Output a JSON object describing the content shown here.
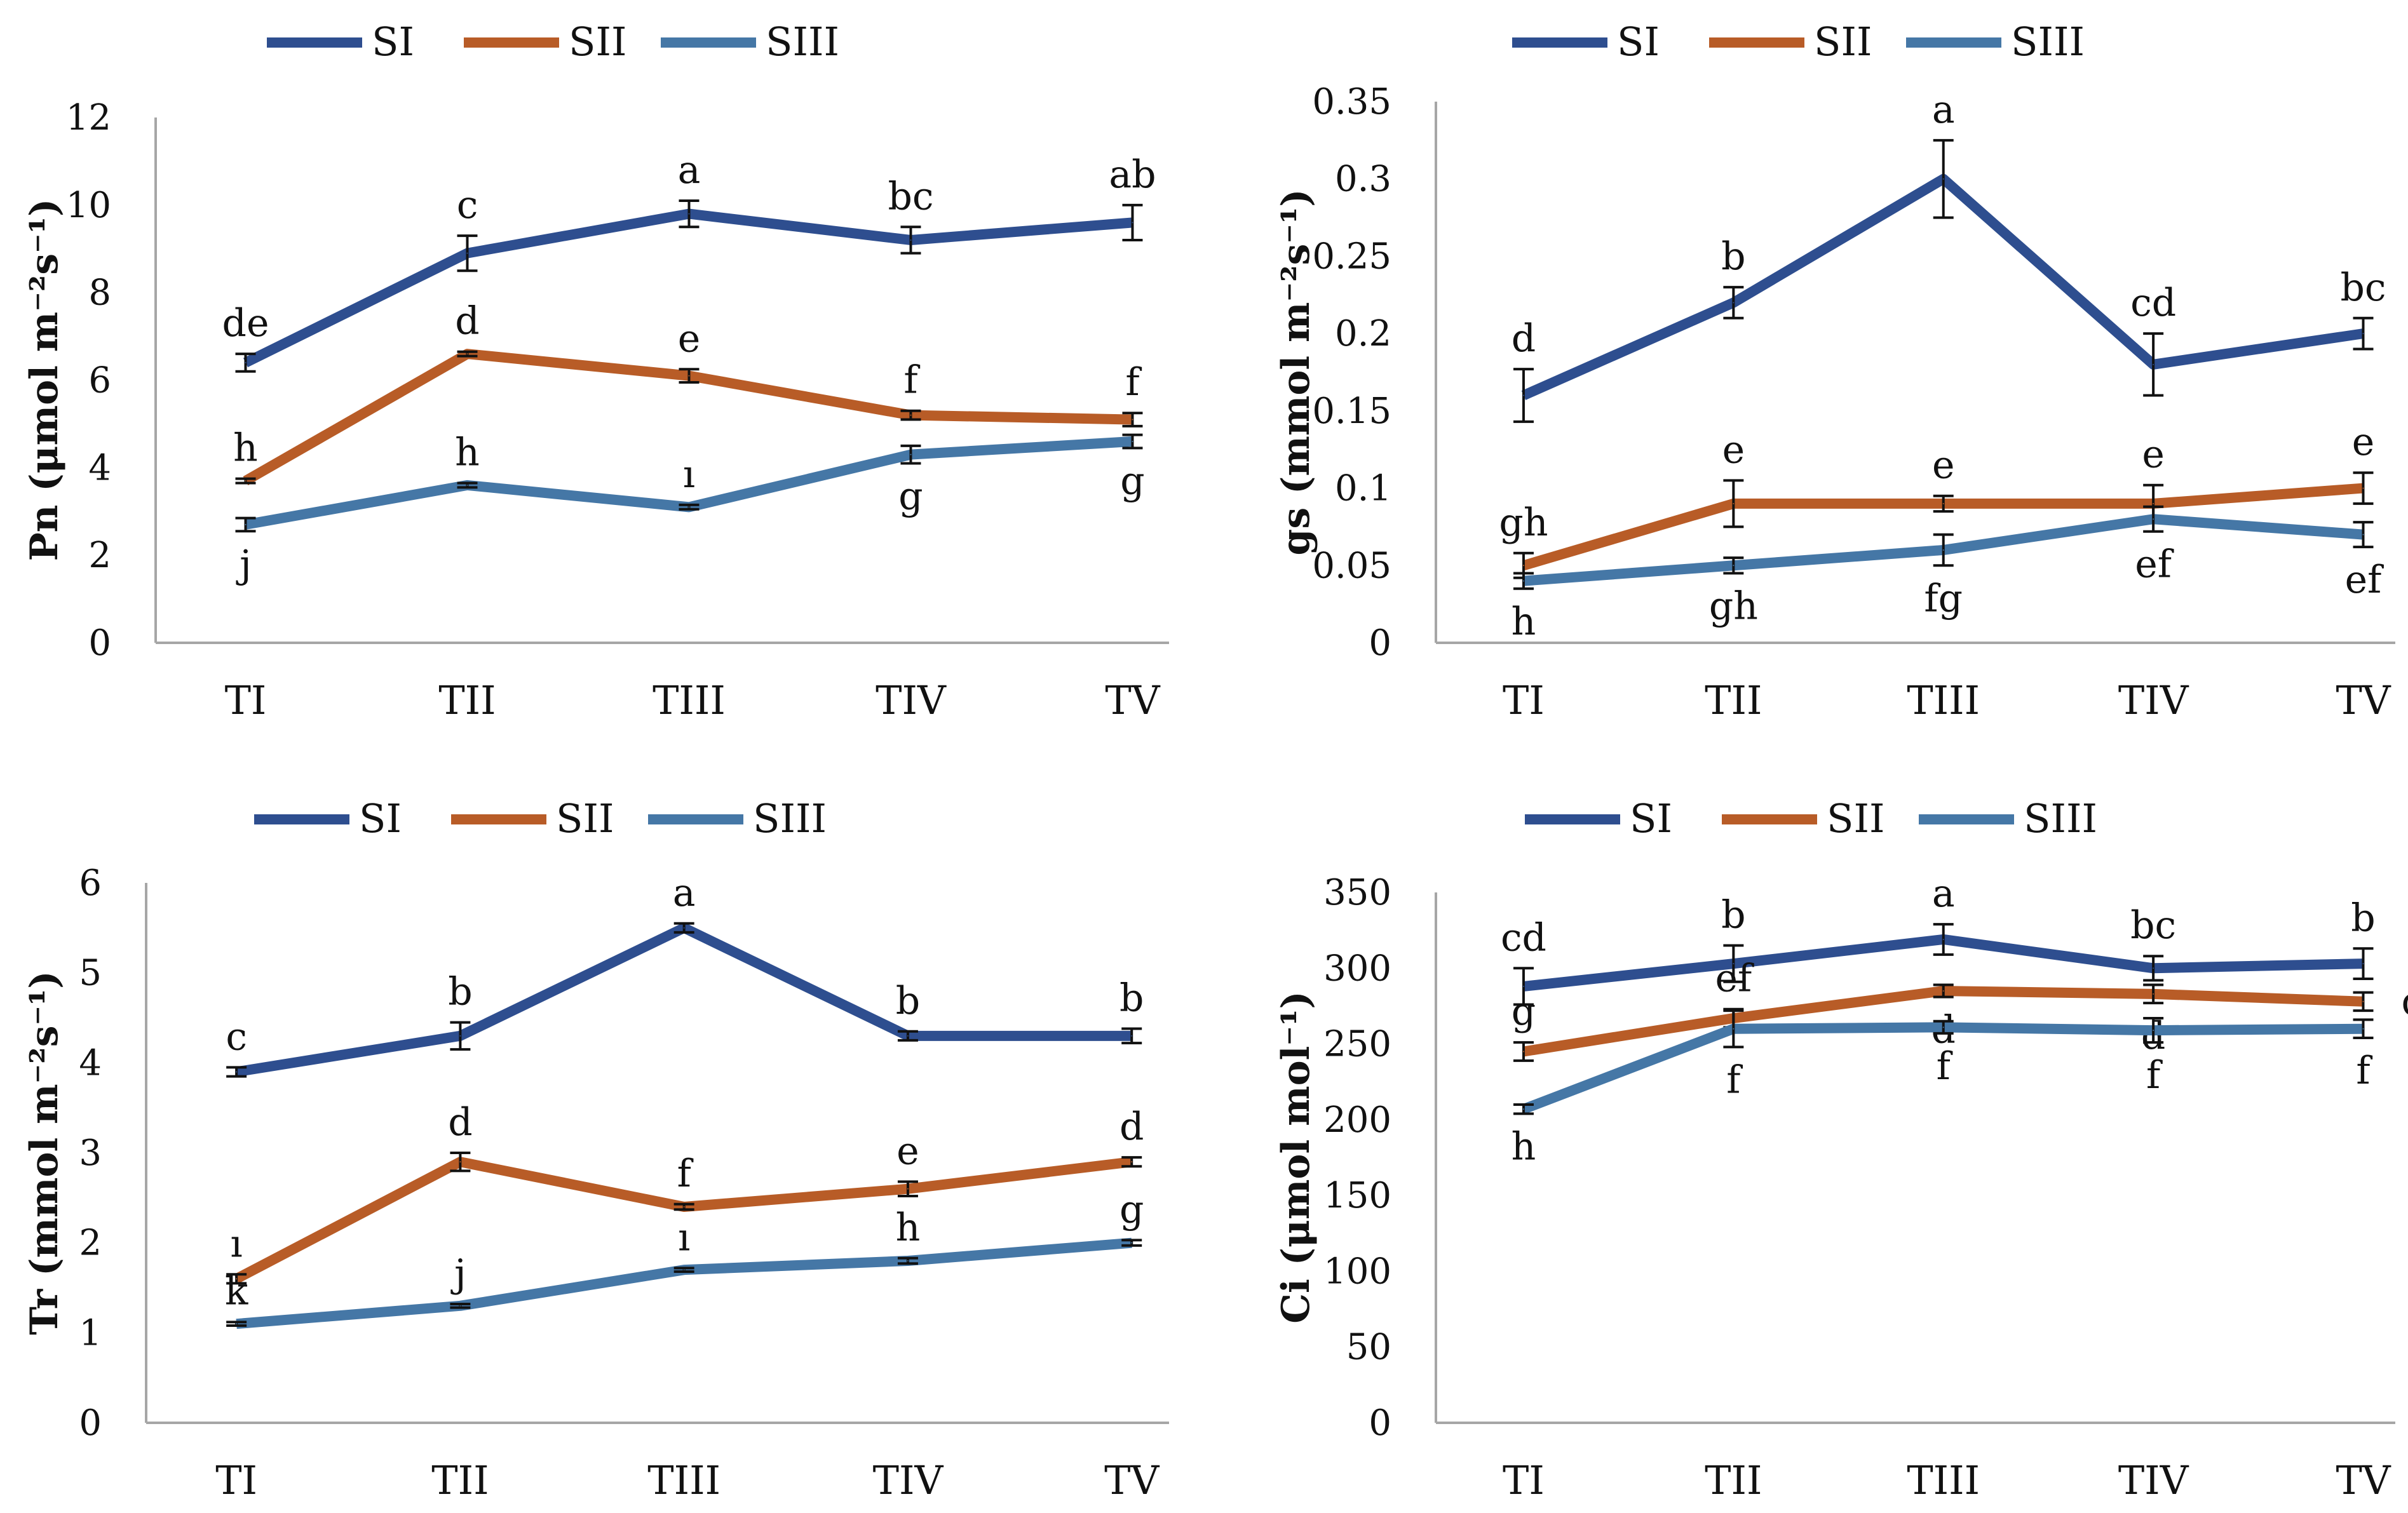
{
  "chart_data": [
    {
      "type": "line",
      "ylabel": "Pn (μmol m⁻²s⁻¹)",
      "categories": [
        "TI",
        "TII",
        "TIII",
        "TIV",
        "TV"
      ],
      "ylim": [
        0,
        12
      ],
      "yticks": [
        "0",
        "2",
        "4",
        "6",
        "8",
        "10",
        "12"
      ],
      "legend": [
        "SI",
        "SII",
        "SIII"
      ],
      "series": [
        {
          "name": "SI",
          "color": "#2e4e8f",
          "values": [
            6.4,
            8.9,
            9.8,
            9.2,
            9.6
          ],
          "errors": [
            0.2,
            0.4,
            0.3,
            0.3,
            0.4
          ],
          "labels": [
            "de",
            "c",
            "a",
            "bc",
            "ab"
          ],
          "label_pos": [
            "above",
            "above",
            "above",
            "above",
            "above"
          ]
        },
        {
          "name": "SII",
          "color": "#b85c27",
          "values": [
            3.7,
            6.6,
            6.1,
            5.2,
            5.1
          ],
          "errors": [
            0.05,
            0.05,
            0.15,
            0.1,
            0.15
          ],
          "labels": [
            "h",
            "d",
            "e",
            "f",
            "f"
          ],
          "label_pos": [
            "above",
            "above",
            "above",
            "above",
            "above"
          ]
        },
        {
          "name": "SIII",
          "color": "#4577a6",
          "values": [
            2.7,
            3.6,
            3.1,
            4.3,
            4.6
          ],
          "errors": [
            0.15,
            0.05,
            0.05,
            0.2,
            0.15
          ],
          "labels": [
            "j",
            "h",
            "ı",
            "g",
            "g"
          ],
          "label_pos": [
            "below",
            "above",
            "above",
            "below",
            "below"
          ]
        }
      ]
    },
    {
      "type": "line",
      "ylabel": "gs (mmol m⁻²s⁻¹)",
      "categories": [
        "TI",
        "TII",
        "TIII",
        "TIV",
        "TV"
      ],
      "ylim": [
        0,
        0.35
      ],
      "yticks": [
        "0",
        "0.05",
        "0.1",
        "0.15",
        "0.2",
        "0.25",
        "0.3",
        "0.35"
      ],
      "legend": [
        "SI",
        "SII",
        "SIII"
      ],
      "series": [
        {
          "name": "SI",
          "color": "#2e4e8f",
          "values": [
            0.16,
            0.22,
            0.3,
            0.18,
            0.2
          ],
          "errors": [
            0.017,
            0.01,
            0.025,
            0.02,
            0.01
          ],
          "labels": [
            "d",
            "b",
            "a",
            "cd",
            "bc"
          ],
          "label_pos": [
            "above",
            "above",
            "above",
            "above",
            "above"
          ]
        },
        {
          "name": "SII",
          "color": "#b85c27",
          "values": [
            0.05,
            0.09,
            0.09,
            0.09,
            0.1
          ],
          "errors": [
            0.008,
            0.015,
            0.005,
            0.012,
            0.01
          ],
          "labels": [
            "gh",
            "e",
            "e",
            "e",
            "e"
          ],
          "label_pos": [
            "above",
            "above",
            "above",
            "above",
            "above"
          ]
        },
        {
          "name": "SIII",
          "color": "#4577a6",
          "values": [
            0.04,
            0.05,
            0.06,
            0.08,
            0.07
          ],
          "errors": [
            0.005,
            0.005,
            0.01,
            0.008,
            0.008
          ],
          "labels": [
            "h",
            "gh",
            "fg",
            "ef",
            "ef"
          ],
          "label_pos": [
            "below",
            "below",
            "below",
            "below",
            "below"
          ]
        }
      ]
    },
    {
      "type": "line",
      "ylabel": "Tr (mmol m⁻²s⁻¹)",
      "categories": [
        "TI",
        "TII",
        "TIII",
        "TIV",
        "TV"
      ],
      "ylim": [
        0,
        6
      ],
      "yticks": [
        "0",
        "1",
        "2",
        "3",
        "4",
        "5",
        "6"
      ],
      "legend": [
        "SI",
        "SII",
        "SIII"
      ],
      "series": [
        {
          "name": "SI",
          "color": "#2e4e8f",
          "values": [
            3.9,
            4.3,
            5.5,
            4.3,
            4.3
          ],
          "errors": [
            0.05,
            0.15,
            0.05,
            0.05,
            0.08
          ],
          "labels": [
            "c",
            "b",
            "a",
            "b",
            "b"
          ],
          "label_pos": [
            "above",
            "above",
            "above",
            "above",
            "above"
          ]
        },
        {
          "name": "SII",
          "color": "#b85c27",
          "values": [
            1.6,
            2.9,
            2.4,
            2.6,
            2.9
          ],
          "errors": [
            0.05,
            0.1,
            0.03,
            0.08,
            0.05
          ],
          "labels": [
            "ı",
            "d",
            "f",
            "e",
            "d"
          ],
          "label_pos": [
            "above",
            "above",
            "above",
            "above",
            "above"
          ]
        },
        {
          "name": "SIII",
          "color": "#4577a6",
          "values": [
            1.1,
            1.3,
            1.7,
            1.8,
            2.0
          ],
          "errors": [
            0.02,
            0.02,
            0.02,
            0.03,
            0.03
          ],
          "labels": [
            "k",
            "j",
            "ı",
            "h",
            "g"
          ],
          "label_pos": [
            "above",
            "above",
            "above",
            "above",
            "above"
          ]
        }
      ]
    },
    {
      "type": "line",
      "ylabel": "Ci (μmol mol⁻¹)",
      "categories": [
        "TI",
        "TII",
        "TIII",
        "TIV",
        "TV"
      ],
      "ylim": [
        0,
        350
      ],
      "yticks": [
        "0",
        "50",
        "100",
        "150",
        "200",
        "250",
        "300",
        "350"
      ],
      "legend": [
        "SI",
        "SII",
        "SIII"
      ],
      "series": [
        {
          "name": "SI",
          "color": "#2e4e8f",
          "values": [
            288,
            303,
            319,
            300,
            303
          ],
          "errors": [
            12,
            12,
            10,
            8,
            10
          ],
          "labels": [
            "cd",
            "b",
            "a",
            "bc",
            "b"
          ],
          "label_pos": [
            "above",
            "above",
            "above",
            "above",
            "above"
          ]
        },
        {
          "name": "SII",
          "color": "#b85c27",
          "values": [
            245,
            267,
            285,
            283,
            278
          ],
          "errors": [
            6,
            6,
            4,
            6,
            6
          ],
          "labels": [
            "g",
            "ef",
            "d",
            "d",
            "de"
          ],
          "label_pos": [
            "above",
            "above",
            "below",
            "below",
            "right"
          ]
        },
        {
          "name": "SIII",
          "color": "#4577a6",
          "values": [
            207,
            260,
            261,
            259,
            260
          ],
          "errors": [
            3,
            12,
            4,
            8,
            6
          ],
          "labels": [
            "h",
            "f",
            "f",
            "f",
            "f"
          ],
          "label_pos": [
            "below",
            "below",
            "below",
            "below",
            "below"
          ]
        }
      ]
    }
  ]
}
